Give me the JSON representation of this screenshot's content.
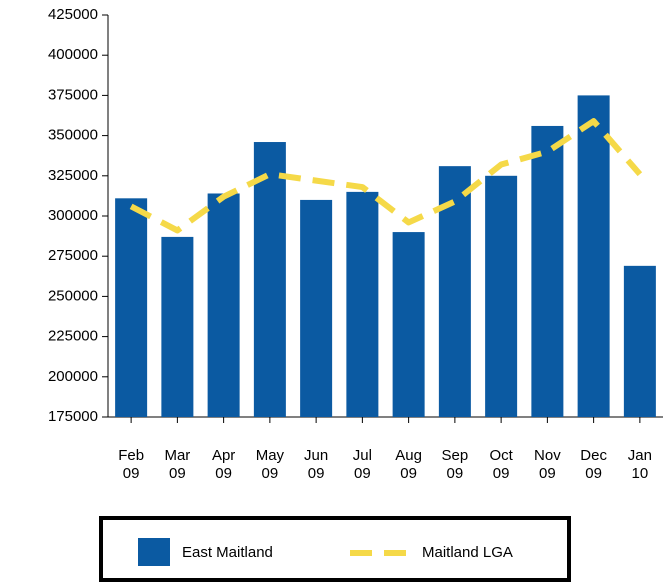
{
  "chart_data": {
    "type": "bar_line",
    "categories": [
      "Feb 09",
      "Mar 09",
      "Apr 09",
      "May 09",
      "Jun 09",
      "Jul 09",
      "Aug 09",
      "Sep 09",
      "Oct 09",
      "Nov 09",
      "Dec 09",
      "Jan 10"
    ],
    "series": [
      {
        "name": "East Maitland",
        "type": "bar",
        "color": "#0b5aa2",
        "values": [
          311000,
          287000,
          314000,
          346000,
          310000,
          315000,
          290000,
          331000,
          325000,
          356000,
          375000,
          269000
        ]
      },
      {
        "name": "Maitland LGA",
        "type": "line",
        "color": "#f5d948",
        "values": [
          306000,
          291000,
          312000,
          326000,
          322000,
          318000,
          296000,
          309000,
          332000,
          340000,
          359000,
          326000
        ]
      }
    ],
    "ylim": [
      175000,
      425000
    ],
    "yticks": [
      175000,
      200000,
      225000,
      250000,
      275000,
      300000,
      325000,
      350000,
      375000,
      400000,
      425000
    ],
    "grid": false,
    "legend": "bottom"
  }
}
